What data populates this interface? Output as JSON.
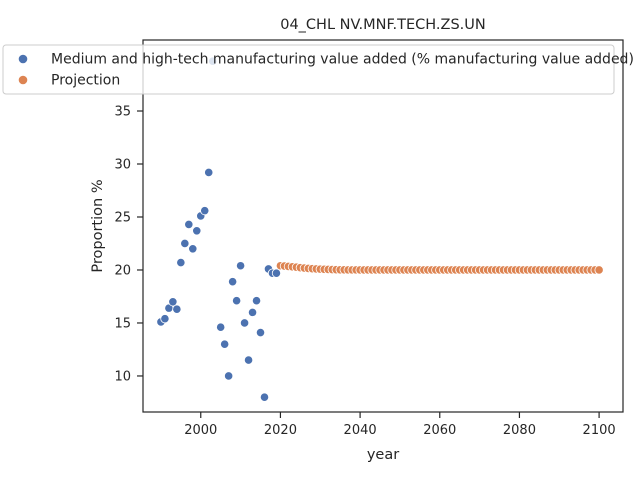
{
  "chart_data": {
    "type": "scatter",
    "title": "04_CHL NV.MNF.TECH.ZS.UN",
    "xlabel": "year",
    "ylabel": "Proportion %",
    "xlim": [
      1985.5,
      2106
    ],
    "ylim": [
      6.6,
      41.7
    ],
    "xticks": [
      2000,
      2020,
      2040,
      2060,
      2080,
      2100
    ],
    "yticks": [
      10,
      15,
      20,
      25,
      30,
      35
    ],
    "grid": false,
    "legend_placement": "upper-center",
    "series": [
      {
        "name": "Medium and high-tech manufacturing value added (% manufacturing value added)",
        "color": "#4c72b0",
        "points": [
          [
            1990,
            15.1
          ],
          [
            1991,
            15.4
          ],
          [
            1992,
            16.4
          ],
          [
            1993,
            17.0
          ],
          [
            1994,
            16.3
          ],
          [
            1995,
            20.7
          ],
          [
            1996,
            22.5
          ],
          [
            1997,
            24.3
          ],
          [
            1998,
            22.0
          ],
          [
            1999,
            23.7
          ],
          [
            2000,
            25.1
          ],
          [
            2001,
            25.6
          ],
          [
            2002,
            29.2
          ],
          [
            2003,
            39.7
          ],
          [
            2005,
            14.6
          ],
          [
            2006,
            13.0
          ],
          [
            2007,
            10.0
          ],
          [
            2008,
            18.9
          ],
          [
            2009,
            17.1
          ],
          [
            2010,
            20.4
          ],
          [
            2011,
            15.0
          ],
          [
            2012,
            11.5
          ],
          [
            2013,
            16.0
          ],
          [
            2014,
            17.1
          ],
          [
            2015,
            14.1
          ],
          [
            2016,
            8.0
          ],
          [
            2017,
            20.1
          ],
          [
            2018,
            19.7
          ],
          [
            2019,
            19.7
          ]
        ]
      },
      {
        "name": "Projection",
        "color": "#dd8452",
        "points": [
          [
            2020,
            20.4
          ],
          [
            2021,
            20.37
          ],
          [
            2022,
            20.33
          ],
          [
            2023,
            20.3
          ],
          [
            2024,
            20.26
          ],
          [
            2025,
            20.22
          ],
          [
            2026,
            20.18
          ],
          [
            2027,
            20.15
          ],
          [
            2028,
            20.12
          ],
          [
            2029,
            20.1
          ],
          [
            2030,
            20.08
          ],
          [
            2031,
            20.06
          ],
          [
            2032,
            20.05
          ],
          [
            2033,
            20.04
          ],
          [
            2034,
            20.03
          ],
          [
            2035,
            20.02
          ],
          [
            2036,
            20.02
          ],
          [
            2037,
            20.01
          ],
          [
            2038,
            20.01
          ],
          [
            2039,
            20.01
          ],
          [
            2040,
            20.0
          ],
          [
            2041,
            20.0
          ],
          [
            2042,
            20.0
          ],
          [
            2043,
            20.0
          ],
          [
            2044,
            20.0
          ],
          [
            2045,
            20.0
          ],
          [
            2046,
            20.0
          ],
          [
            2047,
            20.0
          ],
          [
            2048,
            20.0
          ],
          [
            2049,
            20.0
          ],
          [
            2050,
            20.0
          ],
          [
            2051,
            20.0
          ],
          [
            2052,
            20.0
          ],
          [
            2053,
            20.0
          ],
          [
            2054,
            20.0
          ],
          [
            2055,
            20.0
          ],
          [
            2056,
            20.0
          ],
          [
            2057,
            20.0
          ],
          [
            2058,
            20.0
          ],
          [
            2059,
            20.0
          ],
          [
            2060,
            20.0
          ],
          [
            2061,
            20.0
          ],
          [
            2062,
            20.0
          ],
          [
            2063,
            20.0
          ],
          [
            2064,
            20.0
          ],
          [
            2065,
            20.0
          ],
          [
            2066,
            20.0
          ],
          [
            2067,
            20.0
          ],
          [
            2068,
            20.0
          ],
          [
            2069,
            20.0
          ],
          [
            2070,
            20.0
          ],
          [
            2071,
            20.0
          ],
          [
            2072,
            20.0
          ],
          [
            2073,
            20.0
          ],
          [
            2074,
            20.0
          ],
          [
            2075,
            20.0
          ],
          [
            2076,
            20.0
          ],
          [
            2077,
            20.0
          ],
          [
            2078,
            20.0
          ],
          [
            2079,
            20.0
          ],
          [
            2080,
            20.0
          ],
          [
            2081,
            20.0
          ],
          [
            2082,
            20.0
          ],
          [
            2083,
            20.0
          ],
          [
            2084,
            20.0
          ],
          [
            2085,
            20.0
          ],
          [
            2086,
            20.0
          ],
          [
            2087,
            20.0
          ],
          [
            2088,
            20.0
          ],
          [
            2089,
            20.0
          ],
          [
            2090,
            20.0
          ],
          [
            2091,
            20.0
          ],
          [
            2092,
            20.0
          ],
          [
            2093,
            20.0
          ],
          [
            2094,
            20.0
          ],
          [
            2095,
            20.0
          ],
          [
            2096,
            20.0
          ],
          [
            2097,
            20.0
          ],
          [
            2098,
            20.0
          ],
          [
            2099,
            20.0
          ],
          [
            2100,
            20.0
          ]
        ]
      }
    ]
  }
}
